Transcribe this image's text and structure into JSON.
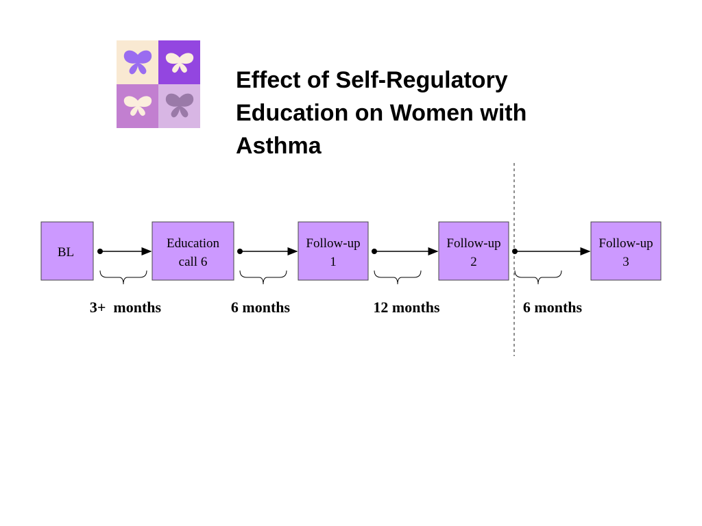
{
  "title": {
    "lines": [
      "Effect of Self-Regulatory",
      "Education on Women with",
      "Asthma"
    ]
  },
  "nodes": [
    {
      "lines": [
        "BL"
      ]
    },
    {
      "lines": [
        "Education",
        "call 6"
      ]
    },
    {
      "lines": [
        "Follow-up",
        "1"
      ]
    },
    {
      "lines": [
        "Follow-up",
        "2"
      ]
    },
    {
      "lines": [
        "Follow-up",
        "3"
      ]
    }
  ],
  "intervals": [
    "3+  months",
    "6 months",
    "12 months",
    "6 months"
  ]
}
